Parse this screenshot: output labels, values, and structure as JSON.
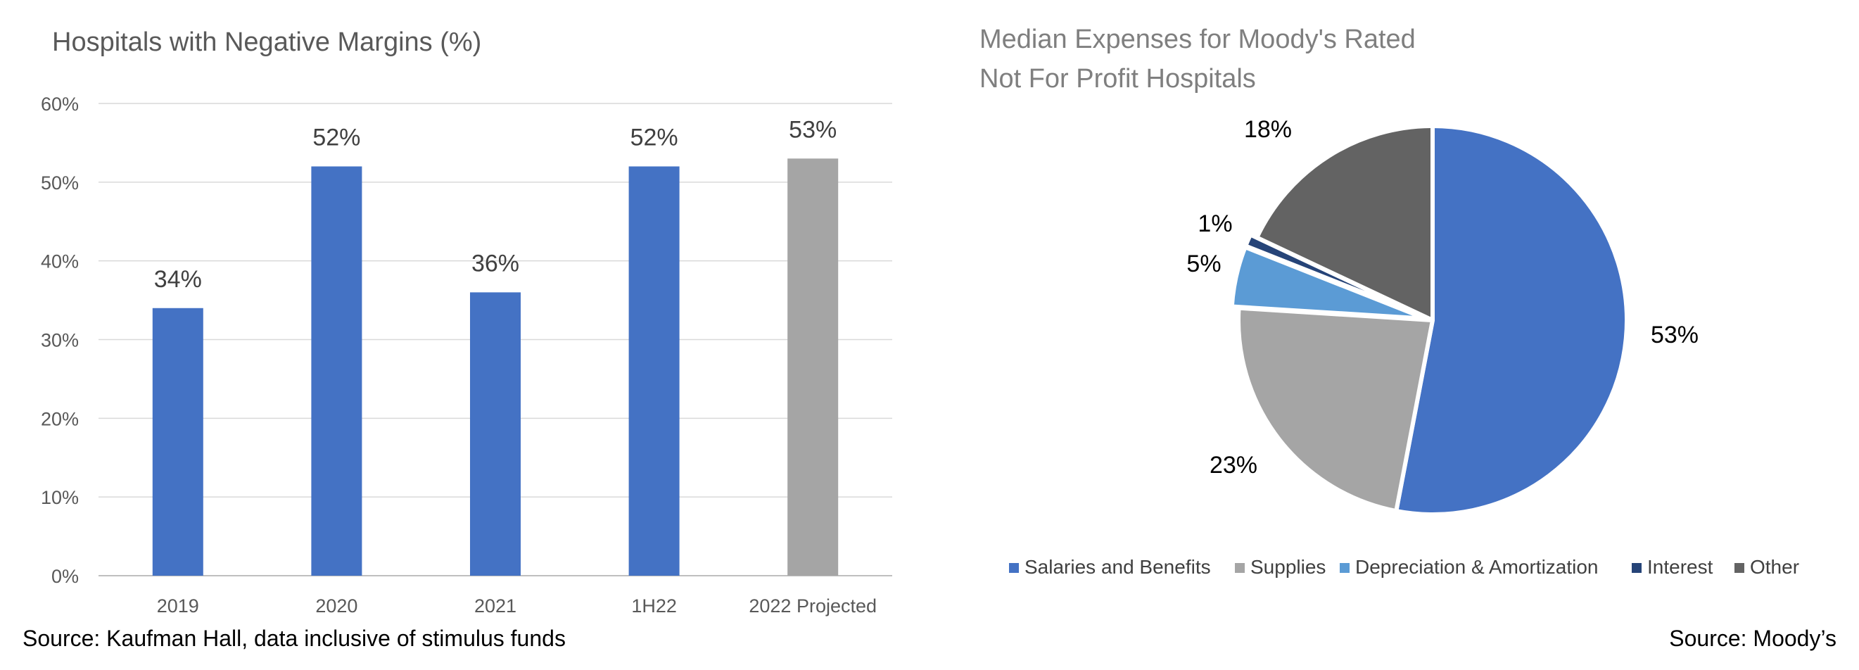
{
  "chart_data": [
    {
      "type": "bar",
      "title": "Hospitals with Negative Margins (%)",
      "categories": [
        "2019",
        "2020",
        "2021",
        "1H22",
        "2022 Projected"
      ],
      "values": [
        34,
        52,
        36,
        52,
        53
      ],
      "data_labels": [
        "34%",
        "52%",
        "36%",
        "52%",
        "53%"
      ],
      "bar_colors": [
        "#4472C4",
        "#4472C4",
        "#4472C4",
        "#4472C4",
        "#A5A5A5"
      ],
      "ylim": [
        0,
        60
      ],
      "yticks": [
        0,
        10,
        20,
        30,
        40,
        50,
        60
      ],
      "ytick_labels": [
        "0%",
        "10%",
        "20%",
        "30%",
        "40%",
        "50%",
        "60%"
      ],
      "grid": true,
      "source": "Source: Kaufman Hall, data inclusive of stimulus funds"
    },
    {
      "type": "pie",
      "title_lines": [
        "Median Expenses for Moody's Rated",
        "Not For Profit Hospitals"
      ],
      "slices": [
        {
          "name": "Salaries and Benefits",
          "value": 53,
          "label": "53%",
          "color": "#4472C4"
        },
        {
          "name": "Supplies",
          "value": 23,
          "label": "23%",
          "color": "#A5A5A5"
        },
        {
          "name": "Depreciation & Amortization",
          "value": 5,
          "label": "5%",
          "color": "#5B9BD5"
        },
        {
          "name": "Interest",
          "value": 1,
          "label": "1%",
          "color": "#264478"
        },
        {
          "name": "Other",
          "value": 18,
          "label": "18%",
          "color": "#636363"
        }
      ],
      "legend_position": "bottom",
      "source": "Source: Moody’s"
    }
  ]
}
